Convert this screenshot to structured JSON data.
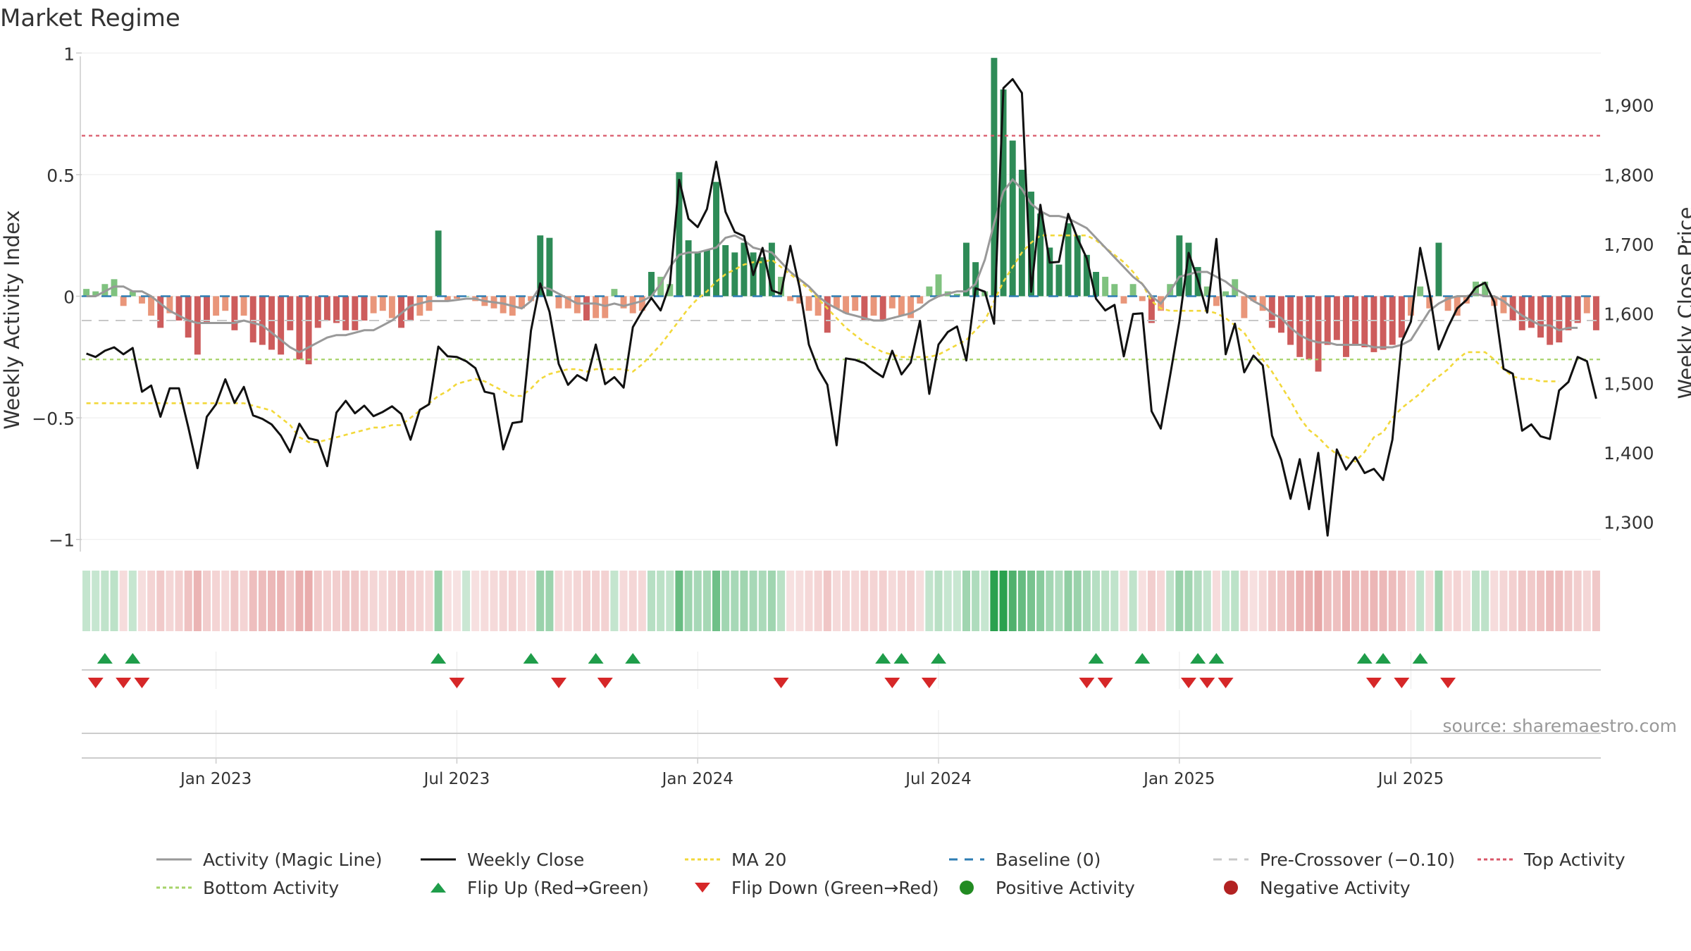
{
  "title": "Market Regime",
  "source": "source: sharemaestro.com",
  "chart_data": {
    "type": "bar+line",
    "title": "Market Regime",
    "left_axis": {
      "label": "Weekly Activity Index",
      "ylim": [
        -1.05,
        1.05
      ],
      "ticks": [
        1,
        0.5,
        0,
        -0.5,
        -1
      ],
      "tick_labels": [
        "1",
        "0.5",
        "0",
        "−0.5",
        "−1"
      ]
    },
    "right_axis": {
      "label": "Weekly Close Price",
      "ylim": [
        1257,
        1992
      ],
      "ticks": [
        1900,
        1800,
        1700,
        1600,
        1500,
        1400,
        1300
      ],
      "tick_labels": [
        "1,900",
        "1,800",
        "1,700",
        "1,600",
        "1,500",
        "1,400",
        "1,300"
      ]
    },
    "x_axis": {
      "tick_labels": [
        "Jan 2023",
        "Jul 2023",
        "Jan 2024",
        "Jul 2024",
        "Jan 2025",
        "Jul 2025"
      ],
      "tick_weeks": [
        14,
        40,
        66,
        92,
        118,
        143
      ]
    },
    "reference_lines": {
      "top_activity": 0.66,
      "bottom_activity": -0.26,
      "pre_crossover": -0.1,
      "baseline": 0
    },
    "activity_index": [
      0.03,
      0.02,
      0.05,
      0.07,
      -0.04,
      0.02,
      -0.03,
      -0.08,
      -0.13,
      -0.07,
      -0.1,
      -0.17,
      -0.24,
      -0.11,
      -0.08,
      -0.06,
      -0.14,
      -0.08,
      -0.19,
      -0.2,
      -0.22,
      -0.24,
      -0.14,
      -0.26,
      -0.28,
      -0.13,
      -0.1,
      -0.11,
      -0.14,
      -0.14,
      -0.1,
      -0.07,
      -0.06,
      -0.09,
      -0.13,
      -0.1,
      -0.08,
      -0.06,
      0.27,
      -0.02,
      -0.01,
      0.0,
      -0.02,
      -0.04,
      -0.05,
      -0.07,
      -0.08,
      -0.05,
      -0.02,
      0.25,
      0.24,
      -0.05,
      -0.05,
      -0.07,
      -0.1,
      -0.09,
      -0.09,
      0.03,
      -0.05,
      -0.07,
      -0.06,
      0.1,
      0.08,
      0.05,
      0.51,
      0.23,
      0.18,
      0.19,
      0.47,
      0.21,
      0.18,
      0.22,
      0.18,
      0.16,
      0.22,
      0.08,
      -0.02,
      -0.03,
      -0.06,
      -0.08,
      -0.15,
      -0.05,
      -0.07,
      -0.06,
      -0.1,
      -0.08,
      -0.1,
      -0.05,
      -0.08,
      -0.09,
      -0.03,
      0.04,
      0.09,
      0.02,
      0.01,
      0.22,
      0.14,
      0.02,
      0.98,
      0.85,
      0.64,
      0.52,
      0.43,
      0.34,
      0.2,
      0.13,
      0.3,
      0.25,
      0.17,
      0.1,
      0.08,
      0.05,
      -0.03,
      0.05,
      -0.02,
      -0.11,
      -0.06,
      0.05,
      0.25,
      0.22,
      0.12,
      0.04,
      -0.04,
      0.02,
      0.07,
      -0.09,
      -0.02,
      -0.06,
      -0.13,
      -0.15,
      -0.2,
      -0.25,
      -0.26,
      -0.31,
      -0.2,
      -0.18,
      -0.25,
      -0.2,
      -0.21,
      -0.23,
      -0.22,
      -0.2,
      -0.17,
      -0.08,
      0.04,
      -0.05,
      0.22,
      -0.06,
      -0.08,
      -0.03,
      0.06,
      0.06,
      -0.04,
      -0.07,
      -0.1,
      -0.14,
      -0.13,
      -0.17,
      -0.2,
      -0.19,
      -0.14,
      -0.11,
      -0.07,
      -0.14
    ],
    "activity_magic_line": [
      0.0,
      0.0,
      0.02,
      0.04,
      0.04,
      0.02,
      0.02,
      0.0,
      -0.03,
      -0.06,
      -0.08,
      -0.1,
      -0.11,
      -0.11,
      -0.11,
      -0.11,
      -0.11,
      -0.1,
      -0.11,
      -0.12,
      -0.15,
      -0.18,
      -0.21,
      -0.23,
      -0.21,
      -0.19,
      -0.17,
      -0.16,
      -0.16,
      -0.15,
      -0.14,
      -0.14,
      -0.12,
      -0.1,
      -0.07,
      -0.04,
      -0.03,
      -0.02,
      -0.02,
      -0.02,
      -0.015,
      -0.01,
      -0.01,
      -0.02,
      -0.025,
      -0.03,
      -0.04,
      -0.05,
      -0.02,
      0.04,
      0.03,
      0.01,
      -0.01,
      -0.03,
      -0.03,
      -0.03,
      -0.04,
      -0.03,
      -0.04,
      -0.03,
      -0.02,
      0.0,
      0.05,
      0.12,
      0.17,
      0.18,
      0.18,
      0.19,
      0.2,
      0.24,
      0.25,
      0.23,
      0.2,
      0.19,
      0.18,
      0.14,
      0.1,
      0.07,
      0.04,
      0.0,
      -0.03,
      -0.05,
      -0.07,
      -0.08,
      -0.09,
      -0.1,
      -0.1,
      -0.09,
      -0.08,
      -0.07,
      -0.05,
      -0.02,
      0.0,
      0.01,
      0.02,
      0.02,
      0.05,
      0.15,
      0.3,
      0.43,
      0.48,
      0.44,
      0.38,
      0.35,
      0.33,
      0.33,
      0.32,
      0.3,
      0.28,
      0.24,
      0.2,
      0.16,
      0.12,
      0.08,
      0.05,
      0.0,
      -0.03,
      0.02,
      0.08,
      0.09,
      0.1,
      0.1,
      0.08,
      0.06,
      0.03,
      0.01,
      -0.02,
      -0.04,
      -0.07,
      -0.09,
      -0.13,
      -0.16,
      -0.18,
      -0.19,
      -0.19,
      -0.2,
      -0.2,
      -0.2,
      -0.2,
      -0.21,
      -0.21,
      -0.21,
      -0.2,
      -0.18,
      -0.12,
      -0.06,
      -0.03,
      -0.01,
      0.0,
      0.0,
      0.01,
      0.0,
      0.0,
      -0.02,
      -0.05,
      -0.08,
      -0.1,
      -0.12,
      -0.12,
      -0.14,
      -0.13,
      -0.13
    ],
    "weekly_close": [
      1542,
      1537,
      1546,
      1551,
      1541,
      1550,
      1487,
      1496,
      1451,
      1492,
      1492,
      1436,
      1377,
      1451,
      1469,
      1505,
      1471,
      1494,
      1453,
      1448,
      1440,
      1424,
      1400,
      1441,
      1420,
      1417,
      1380,
      1457,
      1474,
      1456,
      1467,
      1452,
      1458,
      1466,
      1455,
      1418,
      1461,
      1469,
      1552,
      1538,
      1537,
      1531,
      1521,
      1487,
      1484,
      1404,
      1442,
      1444,
      1575,
      1643,
      1602,
      1527,
      1497,
      1511,
      1503,
      1555,
      1498,
      1508,
      1493,
      1580,
      1603,
      1622,
      1604,
      1642,
      1792,
      1736,
      1724,
      1750,
      1818,
      1746,
      1717,
      1711,
      1655,
      1694,
      1633,
      1628,
      1697,
      1637,
      1555,
      1520,
      1497,
      1410,
      1535,
      1533,
      1528,
      1517,
      1508,
      1546,
      1512,
      1529,
      1589,
      1484,
      1555,
      1573,
      1581,
      1532,
      1636,
      1631,
      1585,
      1924,
      1937,
      1917,
      1631,
      1756,
      1673,
      1674,
      1743,
      1708,
      1679,
      1621,
      1604,
      1612,
      1538,
      1599,
      1600,
      1459,
      1434,
      1510,
      1588,
      1687,
      1648,
      1601,
      1707,
      1541,
      1585,
      1515,
      1539,
      1525,
      1424,
      1389,
      1333,
      1390,
      1318,
      1399,
      1280,
      1404,
      1375,
      1393,
      1370,
      1376,
      1360,
      1418,
      1559,
      1588,
      1694,
      1630,
      1548,
      1580,
      1607,
      1619,
      1637,
      1644,
      1616,
      1520,
      1513,
      1431,
      1440,
      1423,
      1419,
      1489,
      1501,
      1537,
      1531,
      1477
    ],
    "ma_20": [
      -0.44,
      -0.44,
      -0.44,
      -0.44,
      -0.44,
      -0.44,
      -0.44,
      -0.44,
      -0.44,
      -0.44,
      -0.44,
      -0.44,
      -0.44,
      -0.44,
      -0.44,
      -0.44,
      -0.44,
      -0.44,
      -0.45,
      -0.46,
      -0.47,
      -0.5,
      -0.53,
      -0.58,
      -0.6,
      -0.6,
      -0.59,
      -0.58,
      -0.57,
      -0.56,
      -0.55,
      -0.54,
      -0.54,
      -0.53,
      -0.53,
      -0.5,
      -0.47,
      -0.44,
      -0.41,
      -0.39,
      -0.36,
      -0.35,
      -0.34,
      -0.35,
      -0.37,
      -0.39,
      -0.41,
      -0.41,
      -0.38,
      -0.34,
      -0.32,
      -0.31,
      -0.3,
      -0.3,
      -0.31,
      -0.3,
      -0.3,
      -0.3,
      -0.3,
      -0.31,
      -0.28,
      -0.24,
      -0.2,
      -0.15,
      -0.1,
      -0.05,
      -0.01,
      0.02,
      0.06,
      0.09,
      0.11,
      0.13,
      0.14,
      0.14,
      0.15,
      0.12,
      0.09,
      0.06,
      0.03,
      -0.01,
      -0.05,
      -0.09,
      -0.13,
      -0.16,
      -0.19,
      -0.21,
      -0.23,
      -0.24,
      -0.25,
      -0.25,
      -0.25,
      -0.25,
      -0.24,
      -0.22,
      -0.2,
      -0.18,
      -0.14,
      -0.1,
      -0.02,
      0.06,
      0.12,
      0.18,
      0.22,
      0.25,
      0.25,
      0.25,
      0.25,
      0.25,
      0.25,
      0.23,
      0.2,
      0.17,
      0.14,
      0.1,
      0.05,
      -0.02,
      -0.05,
      -0.06,
      -0.06,
      -0.06,
      -0.06,
      -0.06,
      -0.07,
      -0.09,
      -0.12,
      -0.15,
      -0.21,
      -0.26,
      -0.31,
      -0.37,
      -0.43,
      -0.5,
      -0.55,
      -0.58,
      -0.62,
      -0.65,
      -0.66,
      -0.68,
      -0.64,
      -0.58,
      -0.56,
      -0.5,
      -0.46,
      -0.43,
      -0.4,
      -0.36,
      -0.33,
      -0.3,
      -0.26,
      -0.23,
      -0.23,
      -0.23,
      -0.26,
      -0.3,
      -0.33,
      -0.34,
      -0.34,
      -0.35,
      -0.35,
      -0.35
    ],
    "flip_up_weeks": [
      2,
      5,
      38,
      48,
      55,
      59,
      86,
      88,
      92,
      109,
      114,
      120,
      122,
      138,
      140,
      144
    ],
    "flip_down_weeks": [
      1,
      4,
      6,
      40,
      51,
      56,
      75,
      87,
      91,
      108,
      110,
      119,
      121,
      123,
      139,
      142,
      147
    ],
    "legend": [
      {
        "label": "Activity (Magic Line)",
        "symbol": "line",
        "color": "#999999"
      },
      {
        "label": "Weekly Close",
        "symbol": "line",
        "color": "#111111"
      },
      {
        "label": "MA 20",
        "symbol": "dotted",
        "color": "#f2d83a"
      },
      {
        "label": "Baseline (0)",
        "symbol": "dashed",
        "color": "#2e7db3"
      },
      {
        "label": "Pre-Crossover (−0.10)",
        "symbol": "dashed",
        "color": "#c8c8c8"
      },
      {
        "label": "Top Activity",
        "symbol": "dotted",
        "color": "#d9586a"
      },
      {
        "label": "Bottom Activity",
        "symbol": "dotted",
        "color": "#a7d36a"
      },
      {
        "label": "Flip Up (Red→Green)",
        "symbol": "triangle-up",
        "color": "#1f9d4a"
      },
      {
        "label": "Flip Down (Green→Red)",
        "symbol": "triangle-down",
        "color": "#d62728"
      },
      {
        "label": "Positive Activity",
        "symbol": "circle",
        "color": "#228b22"
      },
      {
        "label": "Negative Activity",
        "symbol": "circle",
        "color": "#b22222"
      }
    ]
  }
}
